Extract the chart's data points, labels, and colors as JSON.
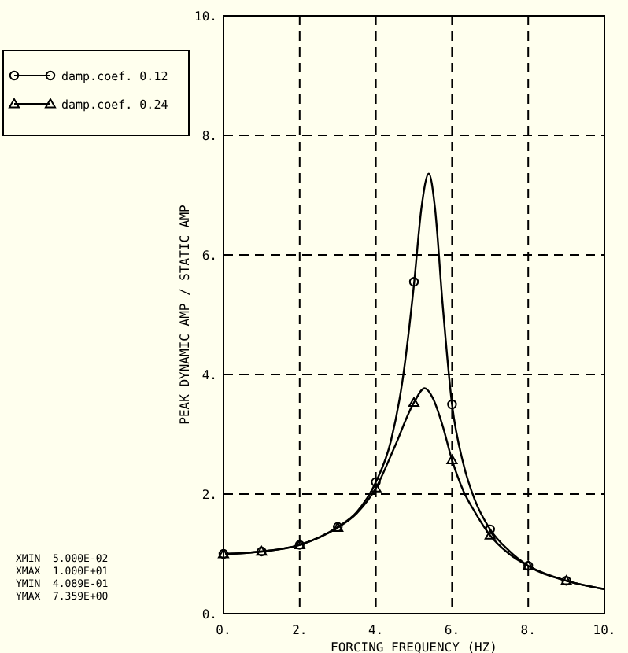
{
  "chart_data": {
    "type": "line",
    "xlabel": "FORCING FREQUENCY (HZ)",
    "ylabel": "PEAK DYNAMIC AMP / STATIC AMP",
    "xlim": [
      0,
      10
    ],
    "ylim": [
      0,
      10
    ],
    "xticks": [
      {
        "value": 0,
        "label": "0."
      },
      {
        "value": 2,
        "label": "2."
      },
      {
        "value": 4,
        "label": "4."
      },
      {
        "value": 6,
        "label": "6."
      },
      {
        "value": 8,
        "label": "8."
      },
      {
        "value": 10,
        "label": "10."
      }
    ],
    "yticks": [
      {
        "value": 0,
        "label": "0."
      },
      {
        "value": 2,
        "label": "2."
      },
      {
        "value": 4,
        "label": "4."
      },
      {
        "value": 6,
        "label": "6."
      },
      {
        "value": 8,
        "label": "8."
      },
      {
        "value": 10,
        "label": "10."
      }
    ],
    "grid": true,
    "legend": "top left",
    "line_style": "solid",
    "marker": "none",
    "series": [
      {
        "color": "#000000",
        "x": [
          0.05,
          1,
          2,
          3,
          3.5,
          4,
          4.4,
          4.7,
          5.0,
          5.2,
          5.39,
          5.55,
          5.75,
          6.0,
          6.3,
          6.6,
          7,
          7.5,
          8,
          9,
          10
        ],
        "values": [
          1.0,
          1.04,
          1.15,
          1.45,
          1.7,
          2.2,
          2.9,
          3.9,
          5.5,
          6.8,
          7.36,
          6.8,
          5.2,
          3.5,
          2.5,
          1.9,
          1.41,
          1.05,
          0.8,
          0.55,
          0.41
        ]
      },
      {
        "color": "#000000",
        "x": [
          0.05,
          1,
          2,
          3,
          3.5,
          4,
          4.5,
          5.0,
          5.28,
          5.5,
          5.75,
          6.0,
          6.3,
          6.6,
          7,
          7.5,
          8,
          9,
          10
        ],
        "values": [
          1.0,
          1.04,
          1.15,
          1.44,
          1.68,
          2.1,
          2.8,
          3.53,
          3.77,
          3.6,
          3.15,
          2.57,
          2.05,
          1.7,
          1.31,
          1.0,
          0.8,
          0.55,
          0.41
        ]
      },
      {
        "type": "scatter",
        "name": "damp.coef. 0.12",
        "marker": "circle",
        "color": "#000000",
        "x": [
          0,
          1,
          2,
          3,
          4,
          5,
          6,
          7,
          8,
          9
        ],
        "values": [
          1.0,
          1.04,
          1.15,
          1.45,
          2.2,
          5.55,
          3.5,
          1.41,
          0.8,
          0.55
        ]
      },
      {
        "type": "scatter",
        "name": "damp.coef. 0.24",
        "marker": "triangle",
        "color": "#000000",
        "x": [
          0,
          1,
          2,
          3,
          4,
          5,
          6,
          7,
          8,
          9
        ],
        "values": [
          1.0,
          1.04,
          1.15,
          1.44,
          2.1,
          3.53,
          2.57,
          1.31,
          0.8,
          0.55
        ]
      }
    ],
    "annotations": [
      "XMIN  5.000E-02",
      "XMAX  1.000E+01",
      "YMIN  4.089E-01",
      "YMAX  7.359E+00"
    ]
  }
}
